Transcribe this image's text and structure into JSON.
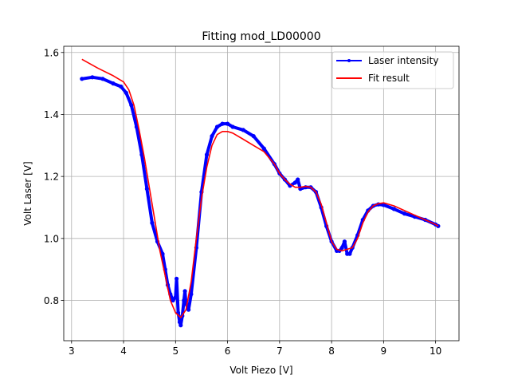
{
  "chart_data": {
    "type": "line",
    "title": "Fitting mod_LD00000",
    "xlabel": "Volt Piezo [V]",
    "ylabel": "Volt Laser [V]",
    "xlim": [
      2.85,
      10.45
    ],
    "ylim": [
      0.67,
      1.62
    ],
    "xticks": [
      3,
      4,
      5,
      6,
      7,
      8,
      9,
      10
    ],
    "xtick_labels": [
      "3",
      "4",
      "5",
      "6",
      "7",
      "8",
      "9",
      "10"
    ],
    "yticks": [
      0.8,
      1.0,
      1.2,
      1.4,
      1.6
    ],
    "ytick_labels": [
      "0.8",
      "1.0",
      "1.2",
      "1.4",
      "1.6"
    ],
    "grid": true,
    "legend_position": "top-right",
    "series": [
      {
        "name": "Laser intensity",
        "color": "#0000ff",
        "marker": "dot",
        "x": [
          3.2,
          3.4,
          3.6,
          3.8,
          3.95,
          4.05,
          4.15,
          4.25,
          4.35,
          4.45,
          4.55,
          4.65,
          4.75,
          4.8,
          4.85,
          4.9,
          4.95,
          5.0,
          5.02,
          5.05,
          5.08,
          5.1,
          5.13,
          5.16,
          5.18,
          5.2,
          5.25,
          5.3,
          5.4,
          5.5,
          5.6,
          5.7,
          5.8,
          5.9,
          6.0,
          6.1,
          6.3,
          6.5,
          6.7,
          6.9,
          7.0,
          7.1,
          7.2,
          7.3,
          7.35,
          7.4,
          7.5,
          7.6,
          7.7,
          7.8,
          7.9,
          8.0,
          8.1,
          8.15,
          8.2,
          8.25,
          8.3,
          8.35,
          8.4,
          8.5,
          8.6,
          8.7,
          8.8,
          8.9,
          9.0,
          9.2,
          9.4,
          9.6,
          9.8,
          10.0,
          10.05
        ],
        "y": [
          1.515,
          1.52,
          1.515,
          1.5,
          1.49,
          1.47,
          1.43,
          1.36,
          1.27,
          1.16,
          1.05,
          0.99,
          0.95,
          0.9,
          0.85,
          0.82,
          0.8,
          0.81,
          0.87,
          0.76,
          0.73,
          0.72,
          0.75,
          0.8,
          0.83,
          0.79,
          0.77,
          0.82,
          0.97,
          1.15,
          1.27,
          1.33,
          1.36,
          1.37,
          1.37,
          1.36,
          1.35,
          1.33,
          1.29,
          1.24,
          1.21,
          1.19,
          1.17,
          1.18,
          1.19,
          1.16,
          1.165,
          1.165,
          1.15,
          1.1,
          1.04,
          0.99,
          0.96,
          0.96,
          0.97,
          0.99,
          0.95,
          0.95,
          0.97,
          1.01,
          1.06,
          1.09,
          1.105,
          1.11,
          1.108,
          1.095,
          1.08,
          1.07,
          1.06,
          1.045,
          1.04
        ]
      },
      {
        "name": "Fit result",
        "color": "#ff0000",
        "marker": "none",
        "x": [
          3.2,
          3.5,
          3.8,
          4.0,
          4.1,
          4.2,
          4.3,
          4.4,
          4.5,
          4.6,
          4.7,
          4.8,
          4.9,
          5.0,
          5.1,
          5.2,
          5.3,
          5.4,
          5.5,
          5.6,
          5.7,
          5.8,
          5.9,
          6.0,
          6.1,
          6.3,
          6.5,
          6.7,
          6.9,
          7.0,
          7.1,
          7.2,
          7.3,
          7.4,
          7.5,
          7.6,
          7.7,
          7.8,
          7.9,
          8.0,
          8.1,
          8.2,
          8.3,
          8.4,
          8.5,
          8.6,
          8.7,
          8.8,
          8.9,
          9.0,
          9.2,
          9.4,
          9.6,
          9.8,
          10.0,
          10.05
        ],
        "y": [
          1.578,
          1.55,
          1.525,
          1.505,
          1.48,
          1.43,
          1.35,
          1.26,
          1.16,
          1.06,
          0.96,
          0.88,
          0.8,
          0.76,
          0.745,
          0.77,
          0.86,
          1.0,
          1.13,
          1.23,
          1.3,
          1.335,
          1.345,
          1.345,
          1.34,
          1.32,
          1.3,
          1.28,
          1.24,
          1.21,
          1.19,
          1.175,
          1.165,
          1.165,
          1.168,
          1.165,
          1.15,
          1.11,
          1.05,
          0.99,
          0.965,
          0.96,
          0.965,
          0.97,
          1.0,
          1.05,
          1.085,
          1.105,
          1.112,
          1.115,
          1.105,
          1.09,
          1.075,
          1.06,
          1.045,
          1.04
        ]
      }
    ]
  }
}
